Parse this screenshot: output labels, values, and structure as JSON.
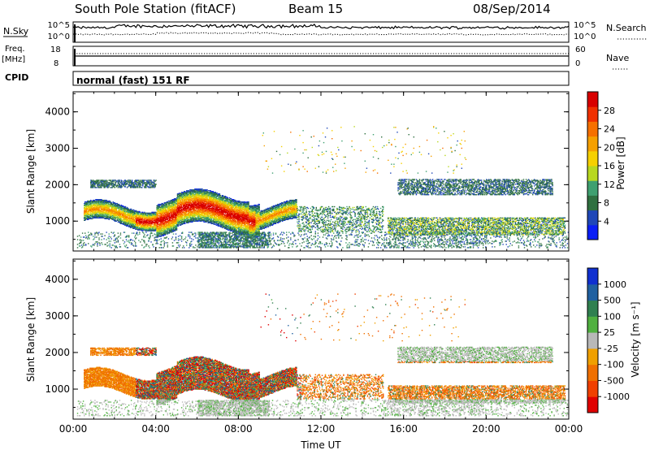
{
  "header": {
    "station": "South Pole Station (fitACF)",
    "beam": "Beam 15",
    "date": "08/Sep/2014"
  },
  "labels": {
    "nsky": "N.Sky",
    "nsearch": "N.Search",
    "freq": "Freq.",
    "mhz": "[MHz]",
    "nave": "Nave",
    "cpid": "CPID",
    "mode": "normal (fast) 151 RF",
    "slant_range": "Slant Range [km]",
    "time": "Time UT"
  },
  "colorbars": {
    "power": {
      "title": "Power [dB]",
      "ticks": [
        "4",
        "8",
        "12",
        "16",
        "20",
        "24",
        "28"
      ],
      "colors": [
        "#0a1ef5",
        "#1f47b8",
        "#2f7040",
        "#3fa070",
        "#b8d820",
        "#f6d000",
        "#f6a000",
        "#f67000",
        "#f03000",
        "#d80000"
      ]
    },
    "velocity": {
      "title": "Velocity [m s⁻¹]",
      "ticks": [
        "1000",
        "500",
        "100",
        "25",
        "-25",
        "-100",
        "-500",
        "-1000"
      ],
      "colors": [
        "#1030d0",
        "#2060a0",
        "#308050",
        "#50b040",
        "#b8b8b8",
        "#f0a000",
        "#f07000",
        "#f04000",
        "#e00000"
      ]
    }
  },
  "chart_data": [
    {
      "type": "line",
      "panel": "Noise",
      "left_axis": {
        "label": "N.Sky",
        "ticks": [
          "10^5",
          "10^0"
        ],
        "scale": "log"
      },
      "right_axis": {
        "label": "N.Search",
        "ticks": [
          "10^5",
          "10^0"
        ],
        "scale": "log"
      },
      "series": [
        {
          "name": "N.Sky",
          "style": "solid"
        },
        {
          "name": "N.Search",
          "style": "dotted"
        }
      ]
    },
    {
      "type": "line",
      "panel": "Freq / Nave",
      "left_axis": {
        "label": "Freq. [MHz]",
        "ticks": [
          "18",
          "8"
        ]
      },
      "right_axis": {
        "label": "Nave",
        "ticks": [
          "60",
          "0"
        ]
      },
      "series": [
        {
          "name": "Freq.",
          "style": "solid"
        },
        {
          "name": "Nave",
          "style": "dotted"
        }
      ]
    },
    {
      "type": "heatmap",
      "panel": "Power",
      "xlabel": "",
      "ylabel": "Slant Range [km]",
      "xlim": [
        0,
        24
      ],
      "ylim": [
        180,
        4550
      ],
      "yticks": [
        1000,
        2000,
        3000,
        4000
      ],
      "colorbar": "Power [dB]",
      "features": [
        {
          "t_start": 0.2,
          "t_end": 23.9,
          "range_start": 200,
          "range_end": 700,
          "note": "near-range ground band"
        },
        {
          "t_start": 0.5,
          "t_end": 10.8,
          "range_start": 750,
          "range_end": 1650,
          "note": "main echo band, strongest 04:00-09:00"
        },
        {
          "t_start": 0.8,
          "t_end": 4.0,
          "range_start": 1900,
          "range_end": 2150,
          "note": "upper band"
        },
        {
          "t_start": 15.2,
          "t_end": 23.8,
          "range_start": 600,
          "range_end": 1100,
          "note": "afternoon lower band"
        },
        {
          "t_start": 15.7,
          "t_end": 23.2,
          "range_start": 1650,
          "range_end": 2150,
          "note": "afternoon upper band"
        }
      ]
    },
    {
      "type": "heatmap",
      "panel": "Velocity",
      "xlabel": "Time UT",
      "ylabel": "Slant Range [km]",
      "xlim": [
        0,
        24
      ],
      "ylim": [
        180,
        4550
      ],
      "xticks": [
        "00:00",
        "04:00",
        "08:00",
        "12:00",
        "16:00",
        "20:00",
        "00:00"
      ],
      "yticks": [
        1000,
        2000,
        3000,
        4000
      ],
      "colorbar": "Velocity [m s⁻¹]"
    }
  ]
}
